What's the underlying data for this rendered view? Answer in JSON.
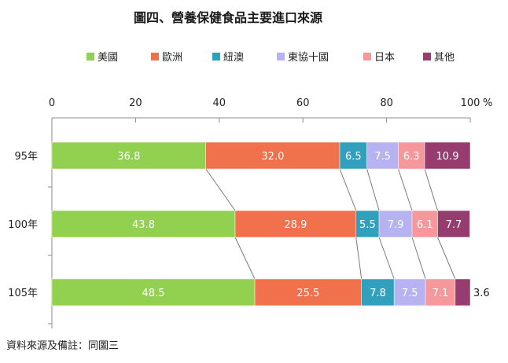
{
  "chart_data": {
    "type": "bar",
    "orientation": "horizontal",
    "stacked": true,
    "title": "圖四、營養保健食品主要進口來源",
    "unit": "%",
    "xlim": [
      0,
      100
    ],
    "xticks": [
      0,
      20,
      40,
      60,
      80,
      100
    ],
    "categories": [
      "95年",
      "100年",
      "105年"
    ],
    "legend_position": "top",
    "series": [
      {
        "name": "美國",
        "color": "#92D050",
        "values": [
          36.8,
          43.8,
          48.5
        ]
      },
      {
        "name": "歐洲",
        "color": "#F0714B",
        "values": [
          32.0,
          28.9,
          25.5
        ]
      },
      {
        "name": "紐澳",
        "color": "#31A0BD",
        "values": [
          6.5,
          5.5,
          7.8
        ]
      },
      {
        "name": "東協十國",
        "color": "#B7B2F2",
        "values": [
          7.5,
          7.9,
          7.5
        ]
      },
      {
        "name": "日本",
        "color": "#F5979B",
        "values": [
          6.3,
          6.1,
          7.1
        ]
      },
      {
        "name": "其他",
        "color": "#963C6E",
        "values": [
          10.9,
          7.7,
          3.6
        ]
      }
    ],
    "value_labels": [
      [
        "36.8",
        "32.0",
        "6.5",
        "7.5",
        "6.3",
        "10.9"
      ],
      [
        "43.8",
        "28.9",
        "5.5",
        "7.9",
        "6.1",
        "7.7"
      ],
      [
        "48.5",
        "25.5",
        "7.8",
        "7.5",
        "7.1",
        "3.6"
      ]
    ],
    "connector_lines": true
  },
  "footnote": "資料來源及備註：同圖三"
}
